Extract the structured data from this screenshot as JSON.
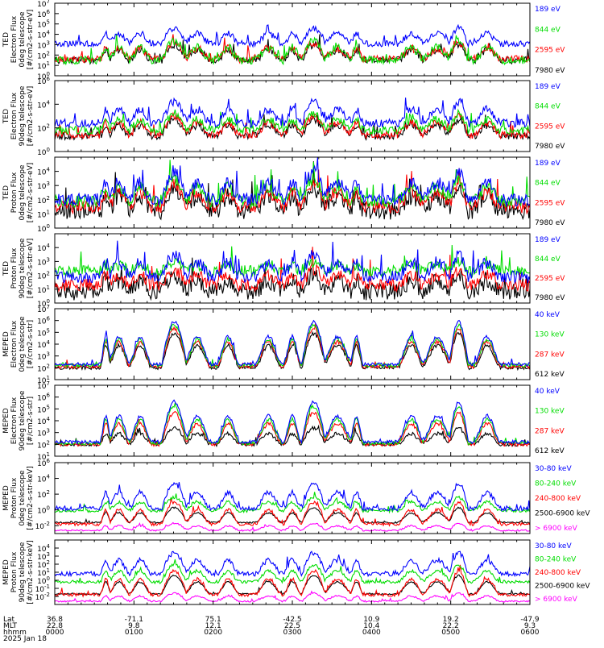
{
  "figure": {
    "x_axis": {
      "row_labels": [
        "Lat",
        "MLT",
        "hhmm"
      ],
      "date": "2025 Jan 18",
      "ticks": [
        {
          "lat": "36.8",
          "mlt": "22.8",
          "hhmm": "0000"
        },
        {
          "lat": "-71.1",
          "mlt": "9.8",
          "hhmm": "0100"
        },
        {
          "lat": "75.1",
          "mlt": "12.1",
          "hhmm": "0200"
        },
        {
          "lat": "-42.5",
          "mlt": "22.5",
          "hhmm": "0300"
        },
        {
          "lat": "10.9",
          "mlt": "10.4",
          "hhmm": "0400"
        },
        {
          "lat": "19.2",
          "mlt": "22.2",
          "hhmm": "0500"
        },
        {
          "lat": "-47.9",
          "mlt": "9.3",
          "hhmm": "0600"
        }
      ]
    }
  },
  "chart_data": [
    {
      "type": "line",
      "ylabel": [
        "TED",
        "Electron Flux",
        "0deg telescope",
        "[#/cm2-s-str-eV]"
      ],
      "y_scale": "log",
      "ylim_exp": [
        0,
        7
      ],
      "y_tick_labels": [
        "10^0",
        "10^1",
        "10^2",
        "10^3",
        "10^4",
        "10^5",
        "10^6",
        "10^7"
      ],
      "series": [
        {
          "name": "7980 eV",
          "color": "#000000",
          "base": 1.5,
          "peak": 3.0,
          "noise": 0.35
        },
        {
          "name": "2595 eV",
          "color": "#ff0000",
          "base": 1.6,
          "peak": 3.2,
          "noise": 0.35
        },
        {
          "name": "844 eV",
          "color": "#00dd00",
          "base": 1.5,
          "peak": 3.4,
          "noise": 0.4
        },
        {
          "name": "189 eV",
          "color": "#0000ff",
          "base": 3.1,
          "peak": 4.6,
          "noise": 0.3
        }
      ]
    },
    {
      "type": "line",
      "ylabel": [
        "TED",
        "Electron Flux",
        "90deg telescope",
        "[#/cm2-s-str-eV]"
      ],
      "y_scale": "log",
      "ylim_exp": [
        0,
        6
      ],
      "y_tick_labels": [
        "10^0",
        "10^2",
        "10^4",
        "10^6"
      ],
      "series": [
        {
          "name": "7980 eV",
          "color": "#000000",
          "base": 1.3,
          "peak": 2.7,
          "noise": 0.3
        },
        {
          "name": "2595 eV",
          "color": "#ff0000",
          "base": 1.4,
          "peak": 3.0,
          "noise": 0.3
        },
        {
          "name": "844 eV",
          "color": "#00dd00",
          "base": 1.8,
          "peak": 3.2,
          "noise": 0.35
        },
        {
          "name": "189 eV",
          "color": "#0000ff",
          "base": 2.4,
          "peak": 4.2,
          "noise": 0.35
        }
      ]
    },
    {
      "type": "line",
      "ylabel": [
        "TED",
        "Proton Flux",
        "0deg telescope",
        "[#/cm2-s-str-eV]"
      ],
      "y_scale": "log",
      "ylim_exp": [
        0,
        5
      ],
      "y_tick_labels": [
        "10^0",
        "10^1",
        "10^2",
        "10^3",
        "10^4"
      ],
      "series": [
        {
          "name": "7980 eV",
          "color": "#000000",
          "base": 1.2,
          "peak": 2.8,
          "noise": 0.6
        },
        {
          "name": "2595 eV",
          "color": "#ff0000",
          "base": 1.5,
          "peak": 3.1,
          "noise": 0.45
        },
        {
          "name": "844 eV",
          "color": "#00dd00",
          "base": 1.9,
          "peak": 3.4,
          "noise": 0.45
        },
        {
          "name": "189 eV",
          "color": "#0000ff",
          "base": 2.0,
          "peak": 3.9,
          "noise": 0.45
        }
      ]
    },
    {
      "type": "line",
      "ylabel": [
        "TED",
        "Proton Flux",
        "90deg telescope",
        "[#/cm2-s-str-eV]"
      ],
      "y_scale": "log",
      "ylim_exp": [
        0,
        5
      ],
      "y_tick_labels": [
        "10^0",
        "10^1",
        "10^2",
        "10^3",
        "10^4"
      ],
      "series": [
        {
          "name": "7980 eV",
          "color": "#000000",
          "base": 0.8,
          "peak": 2.0,
          "noise": 0.6
        },
        {
          "name": "2595 eV",
          "color": "#ff0000",
          "base": 1.3,
          "peak": 2.4,
          "noise": 0.45
        },
        {
          "name": "844 eV",
          "color": "#00dd00",
          "base": 2.3,
          "peak": 3.0,
          "noise": 0.4
        },
        {
          "name": "189 eV",
          "color": "#0000ff",
          "base": 1.9,
          "peak": 3.5,
          "noise": 0.45
        }
      ]
    },
    {
      "type": "line",
      "ylabel": [
        "MEPED",
        "Electron Flux",
        "0deg telescope",
        "[#/cm2-s-str]"
      ],
      "y_scale": "log",
      "ylim_exp": [
        1,
        7
      ],
      "y_tick_labels": [
        "10^1",
        "10^2",
        "10^3",
        "10^4",
        "10^5",
        "10^6",
        "10^7"
      ],
      "series": [
        {
          "name": "612 keV",
          "color": "#000000",
          "base": 2.0,
          "peak": 4.9,
          "noise": 0.15
        },
        {
          "name": "287 keV",
          "color": "#ff0000",
          "base": 2.1,
          "peak": 5.3,
          "noise": 0.15
        },
        {
          "name": "130 keV",
          "color": "#00dd00",
          "base": 2.2,
          "peak": 5.6,
          "noise": 0.15
        },
        {
          "name": "40 keV",
          "color": "#0000ff",
          "base": 2.3,
          "peak": 5.9,
          "noise": 0.15
        }
      ]
    },
    {
      "type": "line",
      "ylabel": [
        "MEPED",
        "Electron Flux",
        "90deg telescope",
        "[#/cm2-s-str]"
      ],
      "y_scale": "log",
      "ylim_exp": [
        1,
        7
      ],
      "y_tick_labels": [
        "10^1",
        "10^2",
        "10^3",
        "10^4",
        "10^5",
        "10^6",
        "10^7"
      ],
      "series": [
        {
          "name": "612 keV",
          "color": "#000000",
          "base": 2.0,
          "peak": 3.4,
          "noise": 0.15
        },
        {
          "name": "287 keV",
          "color": "#ff0000",
          "base": 2.0,
          "peak": 4.7,
          "noise": 0.15
        },
        {
          "name": "130 keV",
          "color": "#00dd00",
          "base": 2.1,
          "peak": 5.2,
          "noise": 0.15
        },
        {
          "name": "40 keV",
          "color": "#0000ff",
          "base": 2.2,
          "peak": 5.6,
          "noise": 0.15
        }
      ]
    },
    {
      "type": "line",
      "ylabel": [
        "MEPED",
        "Proton Flux",
        "0deg telescope",
        "[#/cm2-s-str-keV]"
      ],
      "y_scale": "log",
      "ylim_exp": [
        -3,
        6
      ],
      "y_tick_labels": [
        "10^-2",
        "10^0",
        "10^2",
        "10^4",
        "10^6"
      ],
      "series": [
        {
          "name": "> 6900 keV",
          "color": "#ff00ff",
          "base": -2.6,
          "peak": -1.7,
          "noise": 0.1
        },
        {
          "name": "2500-6900 keV",
          "color": "#000000",
          "base": -1.6,
          "peak": 0.3,
          "noise": 0.1
        },
        {
          "name": "240-800 keV",
          "color": "#ff0000",
          "base": -1.8,
          "peak": 1.0,
          "noise": 0.2
        },
        {
          "name": "80-240 keV",
          "color": "#00dd00",
          "base": -0.1,
          "peak": 1.6,
          "noise": 0.2
        },
        {
          "name": "30-80 keV",
          "color": "#0000ff",
          "base": 0.2,
          "peak": 3.3,
          "noise": 0.3
        }
      ]
    },
    {
      "type": "line",
      "ylabel": [
        "MEPED",
        "Proton Flux",
        "90deg telescope",
        "[#/cm2-s-str-keV]"
      ],
      "y_scale": "log",
      "ylim_exp": [
        -3,
        5
      ],
      "y_tick_labels": [
        "10^-2",
        "10^-1",
        "10^0",
        "10^1",
        "10^2",
        "10^3",
        "10^4"
      ],
      "series": [
        {
          "name": "> 6900 keV",
          "color": "#ff00ff",
          "base": -2.6,
          "peak": -1.6,
          "noise": 0.1
        },
        {
          "name": "2500-6900 keV",
          "color": "#000000",
          "base": -1.7,
          "peak": 0.6,
          "noise": 0.1
        },
        {
          "name": "240-800 keV",
          "color": "#ff0000",
          "base": -1.8,
          "peak": 1.2,
          "noise": 0.2
        },
        {
          "name": "80-240 keV",
          "color": "#00dd00",
          "base": -0.2,
          "peak": 1.9,
          "noise": 0.2
        },
        {
          "name": "30-80 keV",
          "color": "#0000ff",
          "base": 0.8,
          "peak": 3.4,
          "noise": 0.3
        }
      ]
    }
  ]
}
